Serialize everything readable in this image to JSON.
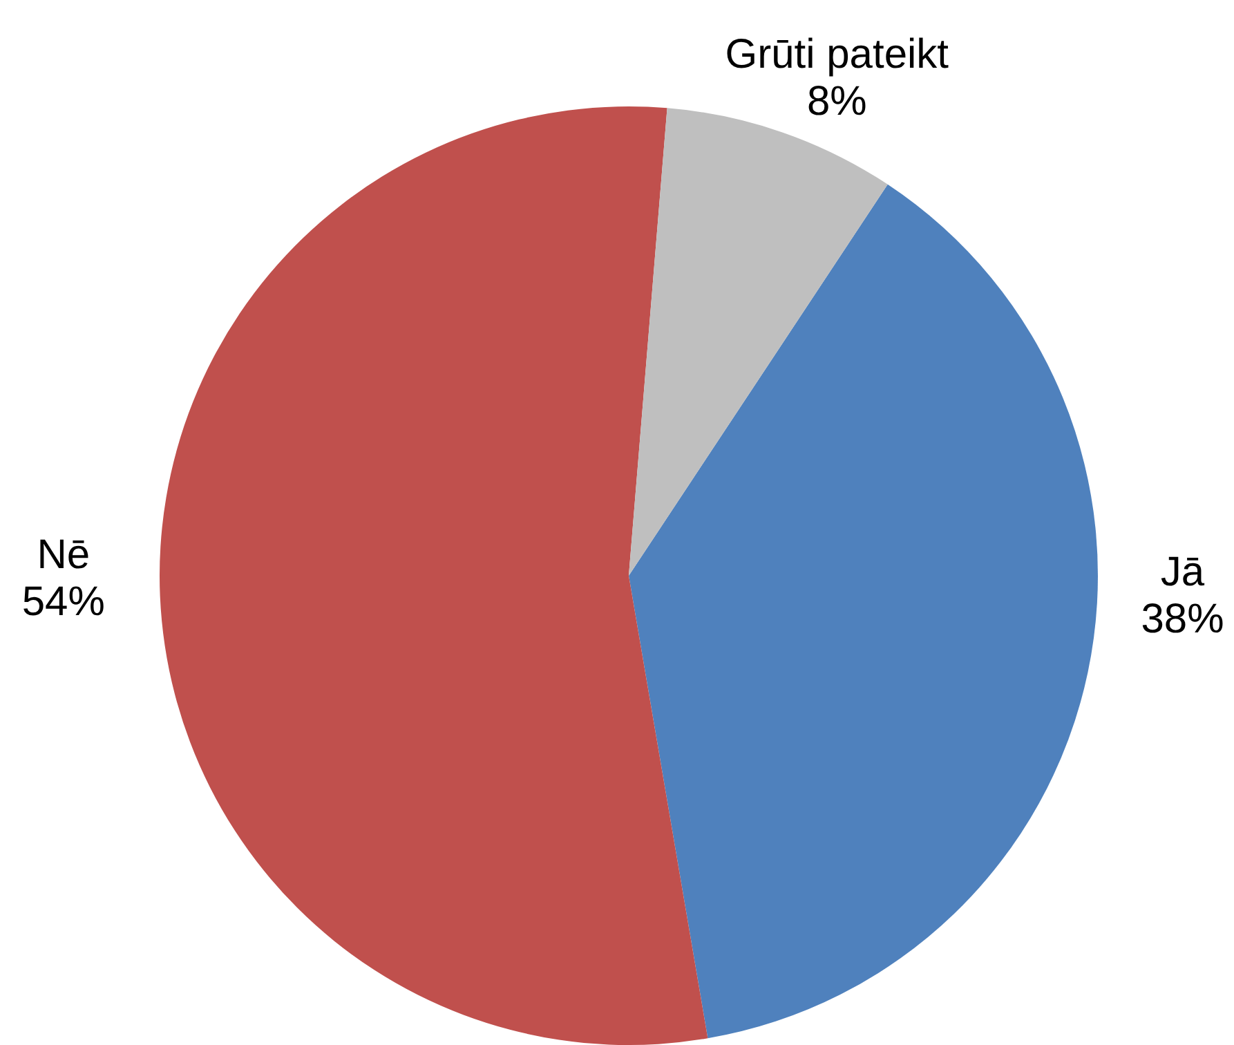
{
  "chart_data": {
    "type": "pie",
    "categories": [
      "Jā",
      "Nē",
      "Grūti pateikt"
    ],
    "values": [
      38,
      54,
      8
    ],
    "colors": [
      "#4f81bd",
      "#c0504d",
      "#bfbfbf"
    ],
    "value_labels": [
      "38%",
      "54%",
      "8%"
    ]
  }
}
